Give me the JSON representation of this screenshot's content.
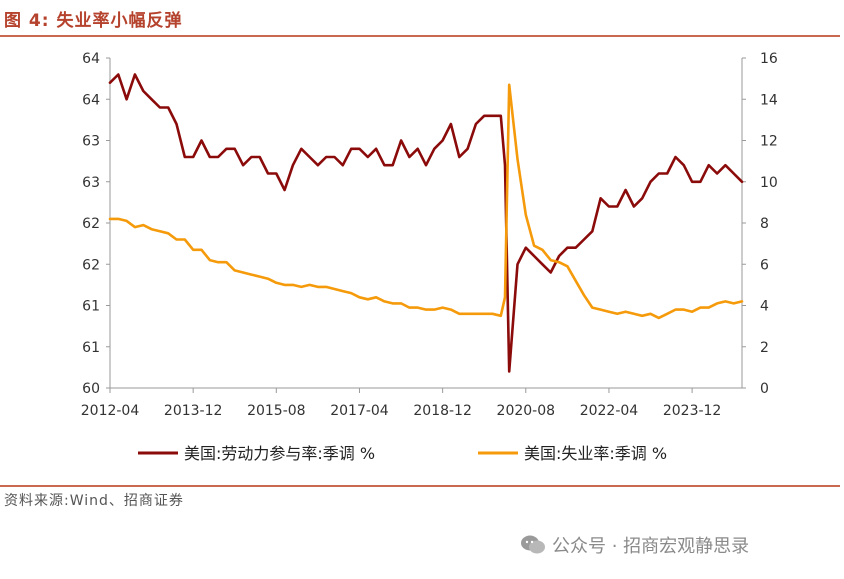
{
  "header": {
    "title": "图 4:  失业率小幅反弹"
  },
  "footer": {
    "source": "资料来源:Wind、招商证券"
  },
  "watermark": {
    "text": "公众号 · 招商宏观静思录",
    "icon": "wechat-icon"
  },
  "colors": {
    "accent": "#b5422c",
    "lfpr": "#8b0a0a",
    "unemp": "#f59a0a"
  },
  "chart_data": {
    "type": "line",
    "title": "",
    "xlabel": "",
    "ylabel_left": "",
    "ylabel_right": "",
    "x_ticks": [
      "2012-04",
      "2013-12",
      "2015-08",
      "2017-04",
      "2018-12",
      "2020-08",
      "2022-04",
      "2023-12"
    ],
    "x_range": [
      "2012-04",
      "2024-12"
    ],
    "y_left_ticks": [
      "60",
      "61",
      "61",
      "62",
      "62",
      "63",
      "63",
      "64",
      "64"
    ],
    "y_left_range": [
      60.0,
      64.0
    ],
    "y_right_ticks": [
      "0",
      "2",
      "4",
      "6",
      "8",
      "10",
      "12",
      "14",
      "16"
    ],
    "y_right_range": [
      0,
      16
    ],
    "grid": false,
    "legend_position": "bottom",
    "series": [
      {
        "name": "美国:劳动力参与率:季调 %",
        "axis": "left",
        "points": [
          [
            "2012-04",
            63.7
          ],
          [
            "2012-06",
            63.8
          ],
          [
            "2012-08",
            63.5
          ],
          [
            "2012-10",
            63.8
          ],
          [
            "2012-12",
            63.6
          ],
          [
            "2013-02",
            63.5
          ],
          [
            "2013-04",
            63.4
          ],
          [
            "2013-06",
            63.4
          ],
          [
            "2013-08",
            63.2
          ],
          [
            "2013-10",
            62.8
          ],
          [
            "2013-12",
            62.8
          ],
          [
            "2014-02",
            63.0
          ],
          [
            "2014-04",
            62.8
          ],
          [
            "2014-06",
            62.8
          ],
          [
            "2014-08",
            62.9
          ],
          [
            "2014-10",
            62.9
          ],
          [
            "2014-12",
            62.7
          ],
          [
            "2015-02",
            62.8
          ],
          [
            "2015-04",
            62.8
          ],
          [
            "2015-06",
            62.6
          ],
          [
            "2015-08",
            62.6
          ],
          [
            "2015-10",
            62.4
          ],
          [
            "2015-12",
            62.7
          ],
          [
            "2016-02",
            62.9
          ],
          [
            "2016-04",
            62.8
          ],
          [
            "2016-06",
            62.7
          ],
          [
            "2016-08",
            62.8
          ],
          [
            "2016-10",
            62.8
          ],
          [
            "2016-12",
            62.7
          ],
          [
            "2017-02",
            62.9
          ],
          [
            "2017-04",
            62.9
          ],
          [
            "2017-06",
            62.8
          ],
          [
            "2017-08",
            62.9
          ],
          [
            "2017-10",
            62.7
          ],
          [
            "2017-12",
            62.7
          ],
          [
            "2018-02",
            63.0
          ],
          [
            "2018-04",
            62.8
          ],
          [
            "2018-06",
            62.9
          ],
          [
            "2018-08",
            62.7
          ],
          [
            "2018-10",
            62.9
          ],
          [
            "2018-12",
            63.0
          ],
          [
            "2019-02",
            63.2
          ],
          [
            "2019-04",
            62.8
          ],
          [
            "2019-06",
            62.9
          ],
          [
            "2019-08",
            63.2
          ],
          [
            "2019-10",
            63.3
          ],
          [
            "2019-12",
            63.3
          ],
          [
            "2020-02",
            63.3
          ],
          [
            "2020-03",
            62.7
          ],
          [
            "2020-04",
            60.2
          ],
          [
            "2020-06",
            61.5
          ],
          [
            "2020-08",
            61.7
          ],
          [
            "2020-10",
            61.6
          ],
          [
            "2020-12",
            61.5
          ],
          [
            "2021-02",
            61.4
          ],
          [
            "2021-04",
            61.6
          ],
          [
            "2021-06",
            61.7
          ],
          [
            "2021-08",
            61.7
          ],
          [
            "2021-10",
            61.8
          ],
          [
            "2021-12",
            61.9
          ],
          [
            "2022-02",
            62.3
          ],
          [
            "2022-04",
            62.2
          ],
          [
            "2022-06",
            62.2
          ],
          [
            "2022-08",
            62.4
          ],
          [
            "2022-10",
            62.2
          ],
          [
            "2022-12",
            62.3
          ],
          [
            "2023-02",
            62.5
          ],
          [
            "2023-04",
            62.6
          ],
          [
            "2023-06",
            62.6
          ],
          [
            "2023-08",
            62.8
          ],
          [
            "2023-10",
            62.7
          ],
          [
            "2023-12",
            62.5
          ],
          [
            "2024-02",
            62.5
          ],
          [
            "2024-04",
            62.7
          ],
          [
            "2024-06",
            62.6
          ],
          [
            "2024-08",
            62.7
          ],
          [
            "2024-10",
            62.6
          ],
          [
            "2024-12",
            62.5
          ]
        ]
      },
      {
        "name": "美国:失业率:季调 %",
        "axis": "right",
        "points": [
          [
            "2012-04",
            8.2
          ],
          [
            "2012-06",
            8.2
          ],
          [
            "2012-08",
            8.1
          ],
          [
            "2012-10",
            7.8
          ],
          [
            "2012-12",
            7.9
          ],
          [
            "2013-02",
            7.7
          ],
          [
            "2013-04",
            7.6
          ],
          [
            "2013-06",
            7.5
          ],
          [
            "2013-08",
            7.2
          ],
          [
            "2013-10",
            7.2
          ],
          [
            "2013-12",
            6.7
          ],
          [
            "2014-02",
            6.7
          ],
          [
            "2014-04",
            6.2
          ],
          [
            "2014-06",
            6.1
          ],
          [
            "2014-08",
            6.1
          ],
          [
            "2014-10",
            5.7
          ],
          [
            "2014-12",
            5.6
          ],
          [
            "2015-02",
            5.5
          ],
          [
            "2015-04",
            5.4
          ],
          [
            "2015-06",
            5.3
          ],
          [
            "2015-08",
            5.1
          ],
          [
            "2015-10",
            5.0
          ],
          [
            "2015-12",
            5.0
          ],
          [
            "2016-02",
            4.9
          ],
          [
            "2016-04",
            5.0
          ],
          [
            "2016-06",
            4.9
          ],
          [
            "2016-08",
            4.9
          ],
          [
            "2016-10",
            4.8
          ],
          [
            "2016-12",
            4.7
          ],
          [
            "2017-02",
            4.6
          ],
          [
            "2017-04",
            4.4
          ],
          [
            "2017-06",
            4.3
          ],
          [
            "2017-08",
            4.4
          ],
          [
            "2017-10",
            4.2
          ],
          [
            "2017-12",
            4.1
          ],
          [
            "2018-02",
            4.1
          ],
          [
            "2018-04",
            3.9
          ],
          [
            "2018-06",
            3.9
          ],
          [
            "2018-08",
            3.8
          ],
          [
            "2018-10",
            3.8
          ],
          [
            "2018-12",
            3.9
          ],
          [
            "2019-02",
            3.8
          ],
          [
            "2019-04",
            3.6
          ],
          [
            "2019-06",
            3.6
          ],
          [
            "2019-08",
            3.6
          ],
          [
            "2019-10",
            3.6
          ],
          [
            "2019-12",
            3.6
          ],
          [
            "2020-02",
            3.5
          ],
          [
            "2020-03",
            4.4
          ],
          [
            "2020-04",
            14.7
          ],
          [
            "2020-06",
            11.1
          ],
          [
            "2020-08",
            8.4
          ],
          [
            "2020-10",
            6.9
          ],
          [
            "2020-12",
            6.7
          ],
          [
            "2021-02",
            6.2
          ],
          [
            "2021-04",
            6.1
          ],
          [
            "2021-06",
            5.9
          ],
          [
            "2021-08",
            5.2
          ],
          [
            "2021-10",
            4.5
          ],
          [
            "2021-12",
            3.9
          ],
          [
            "2022-02",
            3.8
          ],
          [
            "2022-04",
            3.7
          ],
          [
            "2022-06",
            3.6
          ],
          [
            "2022-08",
            3.7
          ],
          [
            "2022-10",
            3.6
          ],
          [
            "2022-12",
            3.5
          ],
          [
            "2023-02",
            3.6
          ],
          [
            "2023-04",
            3.4
          ],
          [
            "2023-06",
            3.6
          ],
          [
            "2023-08",
            3.8
          ],
          [
            "2023-10",
            3.8
          ],
          [
            "2023-12",
            3.7
          ],
          [
            "2024-02",
            3.9
          ],
          [
            "2024-04",
            3.9
          ],
          [
            "2024-06",
            4.1
          ],
          [
            "2024-08",
            4.2
          ],
          [
            "2024-10",
            4.1
          ],
          [
            "2024-12",
            4.2
          ]
        ]
      }
    ]
  }
}
